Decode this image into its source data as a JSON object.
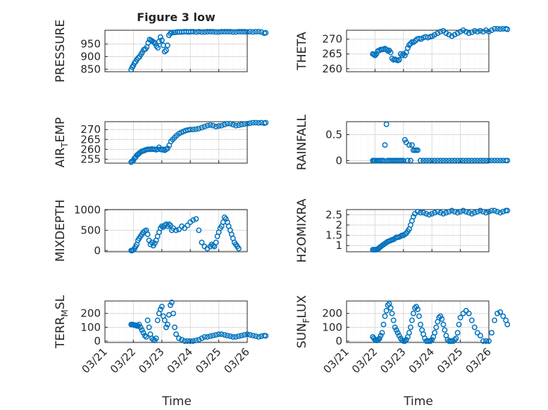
{
  "figure": {
    "title": "Figure 3 low",
    "xlabel": "Time",
    "x_tick_labels": [
      "03/21",
      "03/22",
      "03/23",
      "03/24",
      "03/25",
      "03/26"
    ],
    "marker": "circle",
    "colors": {
      "marker": "#0072BD",
      "grid": "#d9d9d9",
      "axis": "#262626"
    }
  },
  "chart_data": [
    {
      "type": "scatter",
      "ylabel": "PRESSURE",
      "title": "Figure 3 low",
      "ylim": [
        840,
        1005
      ],
      "yticks": [
        850,
        900,
        950
      ],
      "x": [
        0.92,
        0.96,
        1.0,
        1.04,
        1.08,
        1.12,
        1.17,
        1.22,
        1.27,
        1.32,
        1.37,
        1.42,
        1.47,
        1.52,
        1.57,
        1.62,
        1.66,
        1.71,
        1.76,
        1.81,
        1.86,
        1.9,
        1.95,
        2.0,
        2.05,
        2.1,
        2.15,
        2.2,
        2.25,
        2.3,
        2.35,
        2.42,
        2.48,
        2.55,
        2.62,
        2.7,
        2.78,
        2.86,
        2.94,
        3.02,
        3.1,
        3.2,
        3.3,
        3.4,
        3.5,
        3.6,
        3.7,
        3.8,
        3.9,
        4.0,
        4.1,
        4.2,
        4.3,
        4.4,
        4.5,
        4.6,
        4.7,
        4.8,
        4.9,
        5.0,
        5.1,
        5.2,
        5.3,
        5.4,
        5.5,
        5.6,
        5.65
      ],
      "y": [
        848,
        858,
        865,
        875,
        880,
        888,
        895,
        900,
        910,
        918,
        928,
        930,
        938,
        955,
        968,
        965,
        962,
        958,
        953,
        942,
        935,
        960,
        978,
        965,
        945,
        920,
        925,
        945,
        985,
        992,
        996,
        996,
        997,
        998,
        998,
        998,
        999,
        999,
        998,
        999,
        999,
        998,
        999,
        998,
        998,
        999,
        999,
        999,
        998,
        998,
        999,
        999,
        999,
        999,
        998,
        998,
        999,
        999,
        999,
        998,
        999,
        998,
        999,
        999,
        998,
        993,
        995
      ]
    },
    {
      "type": "scatter",
      "ylabel": "THETA",
      "ylim": [
        259,
        273
      ],
      "yticks": [
        260,
        265,
        270
      ],
      "x": [
        0.92,
        0.96,
        1.0,
        1.05,
        1.1,
        1.15,
        1.2,
        1.25,
        1.3,
        1.35,
        1.4,
        1.45,
        1.5,
        1.55,
        1.6,
        1.65,
        1.7,
        1.75,
        1.8,
        1.85,
        1.9,
        1.95,
        2.0,
        2.05,
        2.1,
        2.15,
        2.2,
        2.25,
        2.3,
        2.36,
        2.42,
        2.48,
        2.55,
        2.62,
        2.7,
        2.78,
        2.86,
        2.94,
        3.02,
        3.1,
        3.2,
        3.3,
        3.4,
        3.5,
        3.6,
        3.7,
        3.8,
        3.9,
        4.0,
        4.1,
        4.2,
        4.3,
        4.4,
        4.5,
        4.6,
        4.7,
        4.8,
        4.9,
        5.0,
        5.1,
        5.2,
        5.3,
        5.4,
        5.5,
        5.6,
        5.65
      ],
      "y": [
        265,
        264.8,
        264.5,
        265,
        266,
        266.2,
        266.5,
        266.5,
        266.6,
        266.8,
        266.5,
        266,
        266.2,
        265.5,
        263.5,
        263,
        263.2,
        263,
        262.8,
        263,
        265,
        264.5,
        265,
        264.5,
        265.5,
        267,
        268,
        268.5,
        269,
        269,
        269.5,
        270,
        270.2,
        270,
        270.5,
        270.8,
        270.5,
        270.8,
        271,
        271.5,
        272,
        272.5,
        272.8,
        272,
        271.5,
        271,
        271.5,
        272,
        272.5,
        273,
        272.5,
        272,
        272.3,
        272.8,
        272.5,
        272.8,
        272.5,
        273,
        272.5,
        273,
        273.5,
        273.5,
        273.4,
        273.5,
        273.5,
        273.3
      ]
    },
    {
      "type": "scatter",
      "ylabel": "AIR_TEMP",
      "ylim": [
        253,
        274
      ],
      "yticks": [
        255,
        260,
        265,
        270
      ],
      "x": [
        0.92,
        0.96,
        1.0,
        1.04,
        1.08,
        1.12,
        1.16,
        1.2,
        1.25,
        1.3,
        1.35,
        1.4,
        1.45,
        1.5,
        1.55,
        1.6,
        1.65,
        1.7,
        1.75,
        1.8,
        1.85,
        1.9,
        1.95,
        2.0,
        2.05,
        2.1,
        2.15,
        2.2,
        2.26,
        2.32,
        2.38,
        2.45,
        2.52,
        2.6,
        2.68,
        2.76,
        2.84,
        2.92,
        3.0,
        3.1,
        3.2,
        3.3,
        3.4,
        3.5,
        3.6,
        3.7,
        3.8,
        3.9,
        4.0,
        4.1,
        4.2,
        4.3,
        4.4,
        4.5,
        4.6,
        4.7,
        4.8,
        4.9,
        5.0,
        5.1,
        5.2,
        5.3,
        5.4,
        5.5,
        5.6,
        5.65
      ],
      "y": [
        253.5,
        254,
        254.5,
        255.5,
        256,
        257,
        257.5,
        258,
        258.5,
        259,
        259.2,
        259.5,
        259.8,
        260,
        260,
        260,
        260.2,
        260,
        260,
        259.8,
        260,
        261,
        260,
        259.8,
        260,
        259.5,
        260,
        260.5,
        262,
        264,
        265,
        266,
        267,
        268,
        268.5,
        269,
        269.5,
        269.8,
        270,
        270,
        270.2,
        270.5,
        271,
        271.5,
        272,
        272.3,
        272,
        271.5,
        271.8,
        272,
        272.5,
        273,
        273,
        272.5,
        272,
        272.2,
        272.5,
        272.8,
        273,
        273.2,
        273.5,
        273.5,
        273.4,
        273.5,
        273.2,
        273.5
      ]
    },
    {
      "type": "scatter",
      "ylabel": "RAINFALL",
      "ylim": [
        -0.05,
        0.75
      ],
      "yticks": [
        0,
        0.5
      ],
      "x": [
        0.92,
        0.96,
        1.0,
        1.05,
        1.1,
        1.15,
        1.2,
        1.25,
        1.3,
        1.35,
        1.4,
        1.45,
        1.5,
        1.55,
        1.6,
        1.65,
        1.7,
        1.75,
        1.8,
        1.85,
        1.9,
        1.95,
        2.0,
        2.05,
        2.1,
        2.15,
        2.2,
        2.25,
        2.3,
        2.35,
        2.4,
        2.45,
        2.5,
        2.6,
        2.7,
        2.8,
        2.9,
        3.0,
        3.1,
        3.2,
        3.3,
        3.4,
        3.5,
        3.6,
        3.7,
        3.8,
        3.9,
        4.0,
        4.1,
        4.2,
        4.3,
        4.4,
        4.5,
        4.6,
        4.7,
        4.8,
        4.9,
        5.0,
        5.1,
        5.2,
        5.3,
        5.4,
        5.5,
        5.6,
        5.65
      ],
      "y": [
        0,
        0,
        0,
        0,
        0,
        0,
        0,
        0,
        0,
        0.3,
        0.7,
        0,
        0,
        0,
        0,
        0,
        0,
        0,
        0,
        0,
        0,
        0,
        0,
        0.4,
        0.35,
        0,
        0.3,
        0,
        0.3,
        0.2,
        0.2,
        0.2,
        0.2,
        0,
        0,
        0,
        0,
        0,
        0,
        0,
        0,
        0,
        0,
        0,
        0,
        0,
        0,
        0,
        0,
        0,
        0,
        0,
        0,
        0,
        0,
        0,
        0,
        0,
        0,
        0,
        0,
        0,
        0,
        0,
        0
      ]
    },
    {
      "type": "scatter",
      "ylabel": "MIXDEPTH",
      "ylim": [
        -30,
        1010
      ],
      "yticks": [
        0,
        500,
        1000
      ],
      "x": [
        0.92,
        0.96,
        1.0,
        1.04,
        1.08,
        1.12,
        1.16,
        1.2,
        1.25,
        1.3,
        1.35,
        1.4,
        1.45,
        1.5,
        1.55,
        1.6,
        1.65,
        1.7,
        1.75,
        1.8,
        1.85,
        1.9,
        1.95,
        2.0,
        2.05,
        2.1,
        2.15,
        2.2,
        2.25,
        2.3,
        2.35,
        2.4,
        2.5,
        2.6,
        2.7,
        2.8,
        2.9,
        3.0,
        3.1,
        3.2,
        3.3,
        3.4,
        3.5,
        3.6,
        3.7,
        3.75,
        3.8,
        3.85,
        3.9,
        3.95,
        4.0,
        4.05,
        4.1,
        4.15,
        4.2,
        4.25,
        4.3,
        4.35,
        4.4,
        4.45,
        4.5,
        4.55,
        4.6,
        4.65,
        4.7
      ],
      "y": [
        0,
        0,
        20,
        50,
        100,
        150,
        250,
        300,
        350,
        400,
        450,
        480,
        500,
        400,
        250,
        150,
        200,
        120,
        180,
        250,
        350,
        450,
        550,
        600,
        580,
        620,
        650,
        600,
        650,
        620,
        500,
        550,
        500,
        520,
        600,
        550,
        620,
        700,
        750,
        780,
        500,
        200,
        100,
        50,
        100,
        150,
        120,
        100,
        200,
        350,
        450,
        550,
        600,
        700,
        820,
        780,
        700,
        600,
        500,
        400,
        300,
        200,
        150,
        100,
        50
      ]
    },
    {
      "type": "scatter",
      "ylabel": "H2OMIXRA",
      "ylim": [
        0.7,
        2.75
      ],
      "yticks": [
        1,
        1.5,
        2,
        2.5
      ],
      "x": [
        0.92,
        0.96,
        1.0,
        1.04,
        1.08,
        1.12,
        1.16,
        1.2,
        1.25,
        1.3,
        1.35,
        1.4,
        1.45,
        1.5,
        1.55,
        1.6,
        1.65,
        1.7,
        1.75,
        1.8,
        1.85,
        1.9,
        1.95,
        2.0,
        2.05,
        2.1,
        2.15,
        2.2,
        2.25,
        2.3,
        2.35,
        2.4,
        2.5,
        2.6,
        2.7,
        2.8,
        2.9,
        3.0,
        3.1,
        3.2,
        3.3,
        3.4,
        3.5,
        3.6,
        3.7,
        3.8,
        3.9,
        4.0,
        4.1,
        4.2,
        4.3,
        4.4,
        4.5,
        4.6,
        4.7,
        4.8,
        4.9,
        5.0,
        5.1,
        5.2,
        5.3,
        5.4,
        5.5,
        5.6,
        5.65
      ],
      "y": [
        0.8,
        0.8,
        0.8,
        0.8,
        0.82,
        0.85,
        0.9,
        0.95,
        1.0,
        1.05,
        1.1,
        1.15,
        1.2,
        1.22,
        1.25,
        1.28,
        1.3,
        1.35,
        1.4,
        1.4,
        1.42,
        1.45,
        1.5,
        1.5,
        1.55,
        1.6,
        1.7,
        1.8,
        2.0,
        2.2,
        2.4,
        2.55,
        2.65,
        2.6,
        2.6,
        2.55,
        2.5,
        2.55,
        2.6,
        2.65,
        2.6,
        2.55,
        2.6,
        2.65,
        2.7,
        2.65,
        2.6,
        2.65,
        2.7,
        2.65,
        2.6,
        2.55,
        2.6,
        2.65,
        2.7,
        2.65,
        2.6,
        2.65,
        2.7,
        2.7,
        2.65,
        2.6,
        2.65,
        2.7,
        2.7
      ]
    },
    {
      "type": "scatter",
      "ylabel": "TERR_MSL",
      "ylim": [
        -10,
        290
      ],
      "yticks": [
        0,
        100,
        200
      ],
      "x": [
        0.92,
        0.96,
        1.0,
        1.04,
        1.08,
        1.12,
        1.16,
        1.2,
        1.25,
        1.3,
        1.35,
        1.4,
        1.45,
        1.5,
        1.55,
        1.6,
        1.65,
        1.7,
        1.75,
        1.8,
        1.85,
        1.9,
        1.95,
        2.0,
        2.05,
        2.1,
        2.15,
        2.2,
        2.25,
        2.3,
        2.35,
        2.4,
        2.45,
        2.5,
        2.6,
        2.7,
        2.8,
        2.9,
        3.0,
        3.1,
        3.2,
        3.3,
        3.4,
        3.5,
        3.6,
        3.7,
        3.8,
        3.9,
        4.0,
        4.1,
        4.2,
        4.3,
        4.4,
        4.5,
        4.6,
        4.7,
        4.8,
        4.9,
        5.0,
        5.1,
        5.2,
        5.3,
        5.4,
        5.5,
        5.6,
        5.65
      ],
      "y": [
        120,
        120,
        118,
        115,
        115,
        110,
        110,
        120,
        100,
        80,
        60,
        40,
        30,
        150,
        100,
        50,
        20,
        10,
        5,
        20,
        150,
        200,
        230,
        250,
        180,
        150,
        100,
        120,
        190,
        260,
        280,
        200,
        100,
        50,
        20,
        10,
        0,
        0,
        0,
        0,
        5,
        10,
        20,
        30,
        30,
        35,
        40,
        45,
        50,
        50,
        45,
        40,
        35,
        30,
        30,
        35,
        40,
        45,
        50,
        45,
        40,
        35,
        30,
        35,
        40,
        38
      ]
    },
    {
      "type": "scatter",
      "ylabel": "SUN_FLUX",
      "ylim": [
        -10,
        290
      ],
      "yticks": [
        0,
        100,
        200
      ],
      "x": [
        0.92,
        0.96,
        1.0,
        1.04,
        1.08,
        1.12,
        1.16,
        1.2,
        1.25,
        1.3,
        1.35,
        1.4,
        1.45,
        1.5,
        1.55,
        1.6,
        1.65,
        1.7,
        1.75,
        1.8,
        1.85,
        1.9,
        1.95,
        2.0,
        2.05,
        2.1,
        2.15,
        2.2,
        2.25,
        2.3,
        2.35,
        2.4,
        2.45,
        2.5,
        2.55,
        2.6,
        2.65,
        2.7,
        2.75,
        2.8,
        2.85,
        2.9,
        2.95,
        3.0,
        3.05,
        3.1,
        3.15,
        3.2,
        3.25,
        3.3,
        3.35,
        3.4,
        3.45,
        3.5,
        3.55,
        3.6,
        3.65,
        3.7,
        3.75,
        3.8,
        3.85,
        3.9,
        3.95,
        4.0,
        4.1,
        4.2,
        4.3,
        4.4,
        4.5,
        4.6,
        4.7,
        4.8,
        4.9,
        5.0,
        5.1,
        5.2,
        5.3,
        5.4,
        5.5,
        5.6,
        5.65
      ],
      "y": [
        30,
        20,
        10,
        5,
        5,
        10,
        20,
        40,
        60,
        120,
        180,
        220,
        260,
        270,
        240,
        200,
        150,
        100,
        80,
        60,
        40,
        20,
        5,
        0,
        0,
        10,
        30,
        60,
        100,
        150,
        200,
        240,
        250,
        230,
        180,
        120,
        80,
        50,
        20,
        0,
        0,
        0,
        0,
        10,
        30,
        60,
        100,
        140,
        170,
        180,
        160,
        120,
        80,
        40,
        10,
        0,
        0,
        0,
        0,
        10,
        20,
        60,
        120,
        170,
        200,
        220,
        200,
        150,
        100,
        60,
        40,
        0,
        0,
        0,
        60,
        150,
        200,
        210,
        180,
        150,
        120
      ]
    }
  ]
}
